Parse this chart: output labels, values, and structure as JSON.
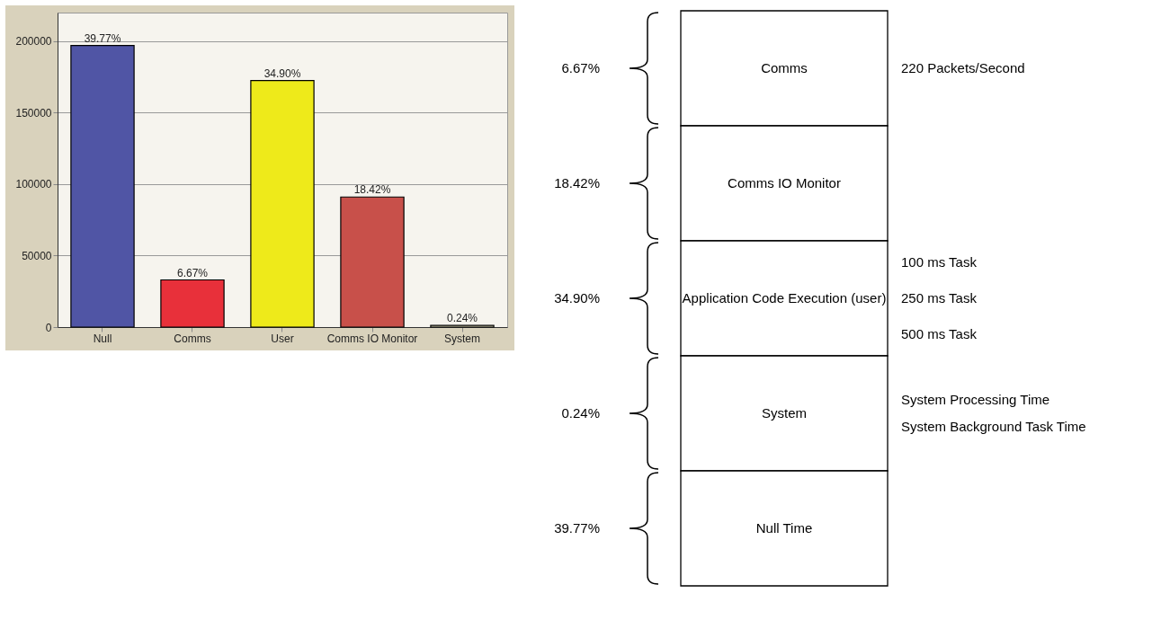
{
  "chart_data": [
    {
      "type": "bar",
      "categories": [
        "Null",
        "Comms",
        "User",
        "Comms IO Monitor",
        "System"
      ],
      "values": [
        197000,
        33000,
        172500,
        91000,
        1200
      ],
      "colors": [
        "#5055a5",
        "#e8303a",
        "#eeea1a",
        "#c8504a",
        "#e8e4c0"
      ],
      "annotations": [
        {
          "text": "39.77%",
          "x": "Null",
          "y": 197000
        },
        {
          "text": "6.67%",
          "x": "Comms",
          "y": 33000
        },
        {
          "text": "34.90%",
          "x": "User",
          "y": 172500
        },
        {
          "text": "18.42%",
          "x": "Comms IO Monitor",
          "y": 91000
        },
        {
          "text": "0.24%",
          "x": "System",
          "y": 1200
        }
      ],
      "ylim": [
        0,
        220000
      ],
      "yticks": [
        0,
        50000,
        100000,
        150000,
        200000
      ],
      "grid": "y",
      "legend": false
    },
    {
      "type": "other",
      "categories": [
        "Comms",
        "Comms IO Monitor",
        "Application Code Execution (user)",
        "System",
        "Null Time"
      ],
      "values": [
        6.67,
        18.42,
        34.9,
        0.24,
        39.77
      ],
      "value_labels": [
        "6.67%",
        "18.42%",
        "34.90%",
        "0.24%",
        "39.77%"
      ],
      "annotations": [
        {
          "text": "220 Packets/Second",
          "y": "Comms"
        },
        {
          "text": "100 ms Task",
          "y": "Application Code Execution (user)"
        },
        {
          "text": "250 ms Task",
          "y": "Application Code Execution (user)"
        },
        {
          "text": "500 ms Task",
          "y": "Application Code Execution (user)"
        },
        {
          "text": "System Processing Time",
          "y": "System"
        },
        {
          "text": "System Background Task Time",
          "y": "System"
        }
      ]
    }
  ]
}
